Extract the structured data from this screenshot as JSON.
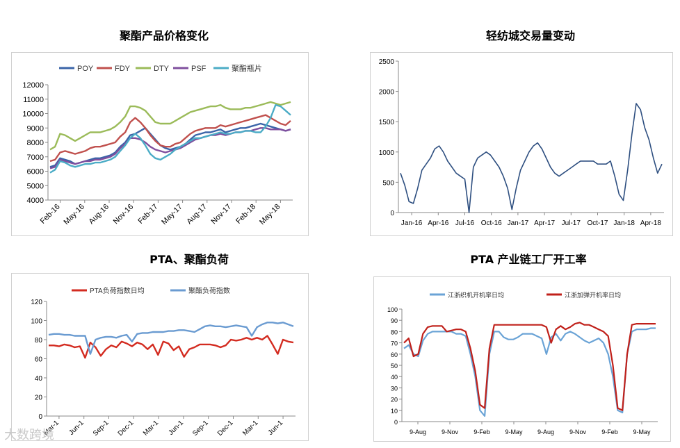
{
  "charts": [
    {
      "title": "聚酯产品价格变化",
      "type": "line",
      "ylim": [
        4000,
        12000
      ],
      "yticks": [
        4000,
        5000,
        6000,
        7000,
        8000,
        9000,
        10000,
        11000,
        12000
      ],
      "xticks": [
        "Feb-16",
        "May-16",
        "Aug-16",
        "Nov-16",
        "Feb-17",
        "May-17",
        "Aug-17",
        "Nov-17",
        "Feb-18",
        "May-18"
      ],
      "legend": "top",
      "series": [
        {
          "name": "POY",
          "color": "#3a64a8",
          "values": [
            6300,
            6400,
            6900,
            6800,
            6700,
            6500,
            6600,
            6700,
            6800,
            6900,
            6900,
            7000,
            7100,
            7300,
            7700,
            8000,
            8500,
            8600,
            8800,
            9000,
            8600,
            8200,
            7800,
            7600,
            7500,
            7600,
            7700,
            7900,
            8200,
            8500,
            8600,
            8700,
            8700,
            8800,
            8900,
            8700,
            8800,
            8900,
            9000,
            9000,
            9100,
            9200,
            9300,
            9200,
            9100,
            9000,
            8900,
            8800,
            8900
          ]
        },
        {
          "name": "FDY",
          "color": "#c0504d",
          "values": [
            6700,
            6800,
            7300,
            7400,
            7300,
            7200,
            7300,
            7400,
            7600,
            7700,
            7700,
            7800,
            7900,
            8000,
            8400,
            8700,
            9400,
            9700,
            9400,
            9000,
            8500,
            8100,
            7800,
            7700,
            7700,
            7900,
            8000,
            8300,
            8600,
            8800,
            8900,
            9000,
            9000,
            9000,
            9200,
            9100,
            9200,
            9300,
            9400,
            9500,
            9600,
            9700,
            9800,
            9900,
            9700,
            9500,
            9300,
            9200,
            9500
          ]
        },
        {
          "name": "DTY",
          "color": "#9bbb59",
          "values": [
            7500,
            7700,
            8600,
            8500,
            8300,
            8100,
            8300,
            8500,
            8700,
            8700,
            8700,
            8800,
            8900,
            9100,
            9400,
            9800,
            10500,
            10500,
            10400,
            10200,
            9800,
            9400,
            9300,
            9300,
            9300,
            9500,
            9700,
            9900,
            10100,
            10200,
            10300,
            10400,
            10500,
            10500,
            10600,
            10400,
            10300,
            10300,
            10300,
            10400,
            10400,
            10500,
            10600,
            10700,
            10800,
            10700,
            10600,
            10700,
            10800
          ]
        },
        {
          "name": "PSF",
          "color": "#7f4f9e",
          "values": [
            6200,
            6300,
            6800,
            6700,
            6600,
            6500,
            6600,
            6700,
            6700,
            6800,
            6800,
            6900,
            7000,
            7200,
            7600,
            7900,
            8300,
            8300,
            8200,
            8000,
            7700,
            7500,
            7400,
            7300,
            7400,
            7500,
            7600,
            7800,
            8000,
            8200,
            8300,
            8400,
            8500,
            8500,
            8600,
            8500,
            8600,
            8700,
            8700,
            8800,
            8800,
            8900,
            9000,
            9000,
            8900,
            8900,
            8900,
            8800,
            8900
          ]
        },
        {
          "name": "聚酯瓶片",
          "color": "#4bacc6",
          "values": [
            5900,
            6100,
            6700,
            6600,
            6400,
            6300,
            6400,
            6500,
            6500,
            6600,
            6600,
            6700,
            6800,
            7000,
            7400,
            7800,
            8300,
            8600,
            8300,
            7800,
            7200,
            6900,
            6800,
            7000,
            7200,
            7500,
            7700,
            7900,
            8100,
            8300,
            8300,
            8400,
            8500,
            8600,
            8700,
            8600,
            8600,
            8700,
            8700,
            8800,
            8800,
            8700,
            8700,
            9100,
            9700,
            10600,
            10500,
            10200,
            9900
          ]
        }
      ]
    },
    {
      "title": "轻纺城交易量变动",
      "type": "line",
      "ylim": [
        0,
        2500
      ],
      "yticks": [
        0,
        500,
        1000,
        1500,
        2000,
        2500
      ],
      "xticks": [
        "Jan-16",
        "Apr-16",
        "Jul-16",
        "Oct-16",
        "Jan-17",
        "Apr-17",
        "Jul-17",
        "Oct-17",
        "Jan-18",
        "Apr-18"
      ],
      "series": [
        {
          "name": "",
          "color": "#2e4f80",
          "values": [
            650,
            450,
            180,
            150,
            400,
            700,
            800,
            900,
            1050,
            1100,
            1000,
            850,
            750,
            650,
            600,
            550,
            0,
            750,
            900,
            950,
            1000,
            950,
            850,
            750,
            600,
            400,
            50,
            400,
            700,
            850,
            1000,
            1100,
            1150,
            1050,
            900,
            750,
            650,
            600,
            650,
            700,
            750,
            800,
            850,
            850,
            850,
            850,
            800,
            800,
            800,
            850,
            600,
            300,
            200,
            700,
            1300,
            1800,
            1700,
            1400,
            1200,
            900,
            650,
            800
          ]
        }
      ]
    },
    {
      "title": "PTA、聚酯负荷",
      "type": "line",
      "ylim": [
        0,
        120
      ],
      "yticks": [
        0,
        20,
        40,
        60,
        80,
        100,
        120
      ],
      "xticks": [
        "Mar-1",
        "Jun-1",
        "Sep-1",
        "Dec-1",
        "Mar-1",
        "Jun-1",
        "Sep-1",
        "Dec-1",
        "Mar-1",
        "Jun-1"
      ],
      "legend": "top",
      "series": [
        {
          "name": "PTA负荷指数日均",
          "color": "#d32b20",
          "values": [
            74,
            74,
            73,
            75,
            74,
            72,
            73,
            61,
            77,
            72,
            63,
            70,
            74,
            72,
            78,
            76,
            73,
            77,
            75,
            70,
            75,
            64,
            78,
            76,
            69,
            73,
            62,
            70,
            72,
            75,
            75,
            75,
            74,
            72,
            74,
            80,
            79,
            80,
            82,
            80,
            82,
            80,
            84,
            75,
            65,
            80,
            78,
            77
          ]
        },
        {
          "name": "聚酯负荷指数",
          "color": "#6a9bd1",
          "values": [
            85,
            86,
            86,
            85,
            85,
            84,
            84,
            84,
            65,
            80,
            82,
            83,
            83,
            82,
            84,
            85,
            78,
            86,
            87,
            87,
            88,
            88,
            88,
            89,
            89,
            90,
            90,
            89,
            88,
            91,
            94,
            95,
            94,
            94,
            93,
            94,
            95,
            94,
            93,
            84,
            93,
            96,
            98,
            98,
            97,
            98,
            96,
            94
          ]
        }
      ]
    },
    {
      "title": "PTA 产业链工厂开工率",
      "type": "line",
      "ylim": [
        0,
        100
      ],
      "yticks": [
        0,
        10,
        20,
        30,
        40,
        50,
        60,
        70,
        80,
        90,
        100
      ],
      "xticks": [
        "9-Aug",
        "9-Nov",
        "9-Feb",
        "9-May",
        "9-Aug",
        "9-Nov",
        "9-Feb",
        "9-May"
      ],
      "legend": "top",
      "series": [
        {
          "name": "江浙织机开机率日均",
          "color": "#6aa3d6",
          "values": [
            65,
            68,
            60,
            58,
            72,
            78,
            80,
            80,
            80,
            80,
            80,
            78,
            78,
            76,
            60,
            40,
            10,
            5,
            60,
            80,
            80,
            75,
            73,
            73,
            75,
            78,
            78,
            78,
            76,
            74,
            60,
            75,
            78,
            72,
            78,
            80,
            78,
            75,
            72,
            70,
            72,
            74,
            70,
            60,
            40,
            10,
            8,
            60,
            80,
            82,
            82,
            82,
            83,
            83
          ]
        },
        {
          "name": "江浙加弹开机率日均",
          "color": "#c0201a",
          "values": [
            70,
            74,
            58,
            60,
            78,
            84,
            85,
            85,
            85,
            80,
            81,
            82,
            82,
            80,
            65,
            45,
            15,
            12,
            65,
            86,
            86,
            86,
            86,
            86,
            86,
            86,
            86,
            86,
            86,
            86,
            84,
            70,
            82,
            85,
            82,
            84,
            87,
            88,
            86,
            86,
            84,
            82,
            80,
            76,
            50,
            12,
            10,
            60,
            86,
            87,
            87,
            87,
            87,
            87
          ]
        }
      ]
    }
  ],
  "watermark": "大数跨境"
}
